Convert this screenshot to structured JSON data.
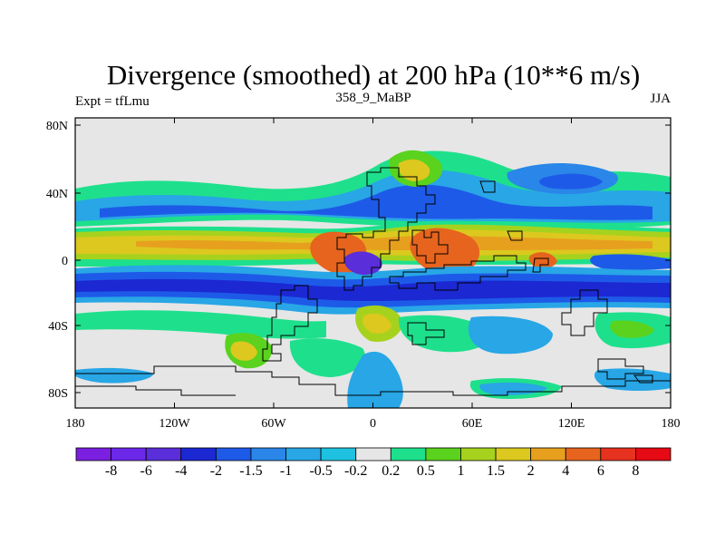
{
  "title": "Divergence (smoothed) at 200 hPa (10**6 m/s)",
  "left_label": "Expt = tfLmu",
  "center_label": "358_9_MaBP",
  "right_label": "JJA",
  "lat_ticks": [
    "80N",
    "40N",
    "0",
    "40S",
    "80S"
  ],
  "lon_ticks": [
    "180",
    "120W",
    "60W",
    "0",
    "60E",
    "120E",
    "180"
  ],
  "colorbar": {
    "colors": [
      "#7b1fe0",
      "#6b28e8",
      "#5a2ed8",
      "#1c28d2",
      "#1e5ae8",
      "#2a86e8",
      "#28a6e6",
      "#1ec2e0",
      "#e6e6e6",
      "#1ee08c",
      "#5ad21e",
      "#a6d21e",
      "#dcc81e",
      "#e6a01e",
      "#e6641e",
      "#e6321e",
      "#e60a14"
    ],
    "labels": [
      "-8",
      "-6",
      "-4",
      "-2",
      "-1.5",
      "-1",
      "-0.5",
      "-0.2",
      "0.2",
      "0.5",
      "1",
      "1.5",
      "2",
      "4",
      "6",
      "8"
    ]
  }
}
